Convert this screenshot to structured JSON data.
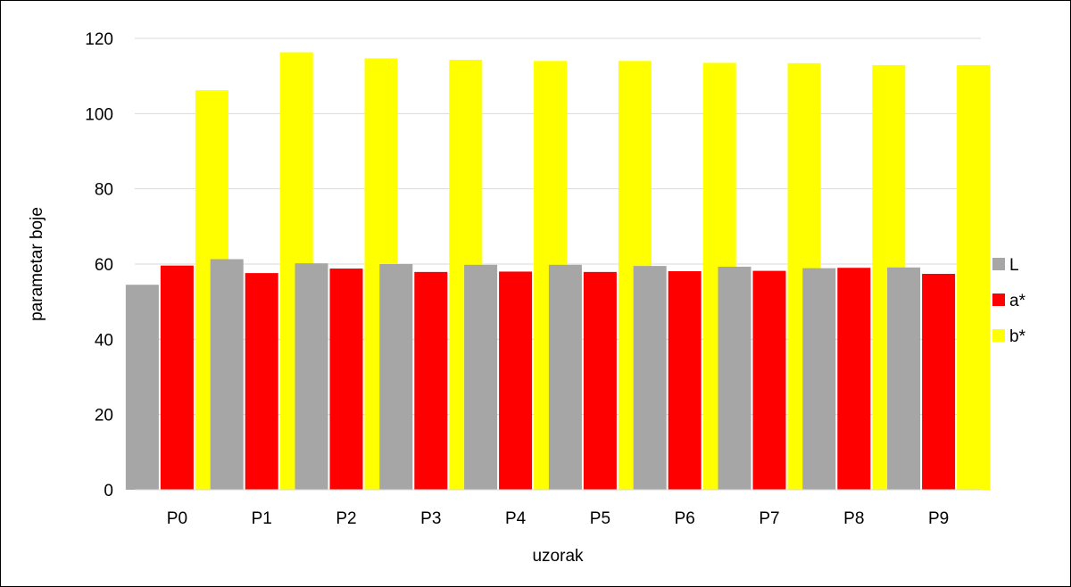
{
  "chart_data": {
    "type": "bar",
    "title": "",
    "xlabel": "uzorak",
    "ylabel": "parametar boje",
    "ylim": [
      0,
      120
    ],
    "yticks": [
      0,
      20,
      40,
      60,
      80,
      100,
      120
    ],
    "grid": true,
    "legend_position": "right",
    "categories": [
      "P0",
      "P1",
      "P2",
      "P3",
      "P4",
      "P5",
      "P6",
      "P7",
      "P8",
      "P9"
    ],
    "series": [
      {
        "name": "L",
        "color": "#a6a6a6",
        "values": [
          54.5,
          61.3,
          60.2,
          60.0,
          59.8,
          59.8,
          59.5,
          59.3,
          58.9,
          59.1
        ]
      },
      {
        "name": "a*",
        "color": "#ff0000",
        "values": [
          59.6,
          57.6,
          58.8,
          57.9,
          58.0,
          57.9,
          58.1,
          58.2,
          59.0,
          57.4
        ]
      },
      {
        "name": "b*",
        "color": "#ffff00",
        "values": [
          106.2,
          116.3,
          114.7,
          114.3,
          114.0,
          114.0,
          113.5,
          113.4,
          112.9,
          112.9
        ]
      }
    ]
  }
}
